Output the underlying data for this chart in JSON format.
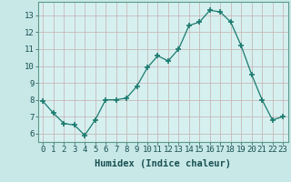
{
  "x": [
    0,
    1,
    2,
    3,
    4,
    5,
    6,
    7,
    8,
    9,
    10,
    11,
    12,
    13,
    14,
    15,
    16,
    17,
    18,
    19,
    20,
    21,
    22,
    23
  ],
  "y": [
    7.9,
    7.2,
    6.6,
    6.5,
    5.9,
    6.8,
    8.0,
    8.0,
    8.1,
    8.8,
    9.9,
    10.6,
    10.3,
    11.0,
    12.4,
    12.6,
    13.3,
    13.2,
    12.6,
    11.2,
    9.5,
    8.0,
    6.8,
    7.0
  ],
  "xlabel": "Humidex (Indice chaleur)",
  "ylim": [
    5.5,
    13.8
  ],
  "xlim": [
    -0.5,
    23.5
  ],
  "yticks": [
    6,
    7,
    8,
    9,
    10,
    11,
    12,
    13
  ],
  "xticks": [
    0,
    1,
    2,
    3,
    4,
    5,
    6,
    7,
    8,
    9,
    10,
    11,
    12,
    13,
    14,
    15,
    16,
    17,
    18,
    19,
    20,
    21,
    22,
    23
  ],
  "line_color": "#1a7a6e",
  "marker_color": "#1a7a6e",
  "bg_color": "#c8e8e8",
  "grid_color": "#c8b8b8",
  "axis_bg": "#d6f0f0",
  "tick_fontsize": 6.5,
  "xlabel_fontsize": 7.5
}
